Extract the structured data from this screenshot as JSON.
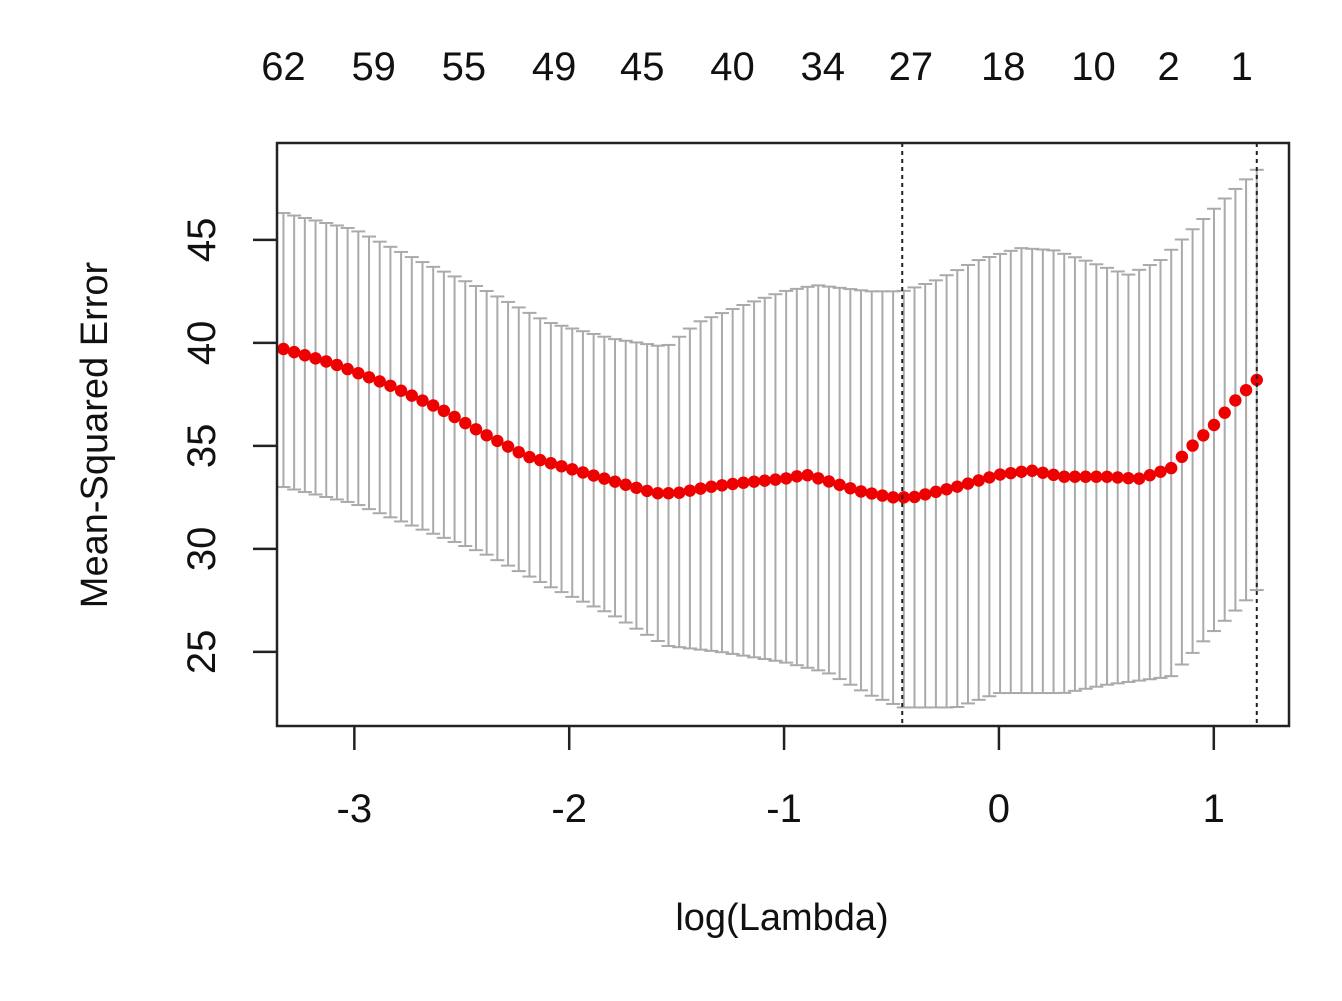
{
  "chart_data": {
    "type": "scatter",
    "title": "",
    "xlabel": "log(Lambda)",
    "ylabel": "Mean-Squared Error",
    "xlim": [
      -3.36,
      1.35
    ],
    "ylim": [
      21.4,
      49.7
    ],
    "x_ticks": [
      -3,
      -2,
      -1,
      0,
      1
    ],
    "x_tick_labels": [
      "-3",
      "-2",
      "-1",
      "0",
      "1"
    ],
    "y_ticks": [
      25,
      30,
      35,
      40,
      45
    ],
    "y_tick_labels": [
      "25",
      "30",
      "35",
      "40",
      "45"
    ],
    "top_axis": {
      "ticks": [
        -3.33,
        -2.91,
        -2.49,
        -2.07,
        -1.66,
        -1.24,
        -0.82,
        -0.41,
        0.02,
        0.44,
        0.79,
        1.13
      ],
      "labels": [
        "62",
        "59",
        "55",
        "49",
        "45",
        "40",
        "34",
        "27",
        "18",
        "10",
        "2",
        "1"
      ]
    },
    "vlines": [
      -0.45,
      1.2
    ],
    "mean_knots": [
      [
        -3.33,
        39.7
      ],
      [
        -3.1,
        39.0
      ],
      [
        -2.85,
        38.0
      ],
      [
        -2.6,
        36.8
      ],
      [
        -2.4,
        35.6
      ],
      [
        -2.2,
        34.5
      ],
      [
        -2.0,
        33.9
      ],
      [
        -1.8,
        33.3
      ],
      [
        -1.6,
        32.7
      ],
      [
        -1.5,
        32.7
      ],
      [
        -1.35,
        33.0
      ],
      [
        -1.2,
        33.2
      ],
      [
        -1.0,
        33.4
      ],
      [
        -0.9,
        33.6
      ],
      [
        -0.8,
        33.3
      ],
      [
        -0.65,
        32.8
      ],
      [
        -0.5,
        32.5
      ],
      [
        -0.4,
        32.5
      ],
      [
        -0.2,
        33.0
      ],
      [
        0.0,
        33.6
      ],
      [
        0.15,
        33.8
      ],
      [
        0.3,
        33.5
      ],
      [
        0.5,
        33.5
      ],
      [
        0.65,
        33.4
      ],
      [
        0.8,
        33.9
      ],
      [
        0.9,
        35.0
      ],
      [
        1.0,
        36.0
      ],
      [
        1.1,
        37.2
      ],
      [
        1.2,
        38.2
      ]
    ],
    "upper_knots": [
      [
        -3.33,
        46.3
      ],
      [
        -3.0,
        45.5
      ],
      [
        -2.7,
        44.0
      ],
      [
        -2.4,
        42.6
      ],
      [
        -2.1,
        41.0
      ],
      [
        -1.8,
        40.2
      ],
      [
        -1.55,
        39.8
      ],
      [
        -1.4,
        41.0
      ],
      [
        -1.2,
        41.8
      ],
      [
        -1.0,
        42.5
      ],
      [
        -0.85,
        42.8
      ],
      [
        -0.6,
        42.5
      ],
      [
        -0.45,
        42.5
      ],
      [
        -0.3,
        43.0
      ],
      [
        -0.1,
        44.0
      ],
      [
        0.1,
        44.6
      ],
      [
        0.25,
        44.5
      ],
      [
        0.4,
        44.0
      ],
      [
        0.6,
        43.3
      ],
      [
        0.75,
        44.0
      ],
      [
        0.9,
        45.5
      ],
      [
        1.05,
        47.0
      ],
      [
        1.2,
        48.4
      ]
    ],
    "lower_knots": [
      [
        -3.33,
        33.0
      ],
      [
        -3.0,
        32.2
      ],
      [
        -2.7,
        31.0
      ],
      [
        -2.4,
        29.8
      ],
      [
        -2.1,
        28.2
      ],
      [
        -1.8,
        26.8
      ],
      [
        -1.55,
        25.3
      ],
      [
        -1.3,
        25.0
      ],
      [
        -1.0,
        24.5
      ],
      [
        -0.8,
        24.0
      ],
      [
        -0.6,
        22.9
      ],
      [
        -0.45,
        22.3
      ],
      [
        -0.2,
        22.3
      ],
      [
        0.0,
        23.0
      ],
      [
        0.3,
        23.0
      ],
      [
        0.5,
        23.4
      ],
      [
        0.8,
        23.8
      ],
      [
        0.95,
        25.5
      ],
      [
        1.1,
        27.0
      ],
      [
        1.2,
        28.0
      ]
    ],
    "n_points": 92,
    "colors": {
      "points": "#ee0000",
      "error_bars": "#aaaaaa",
      "axes": "#222222",
      "vlines": "#222222"
    }
  }
}
